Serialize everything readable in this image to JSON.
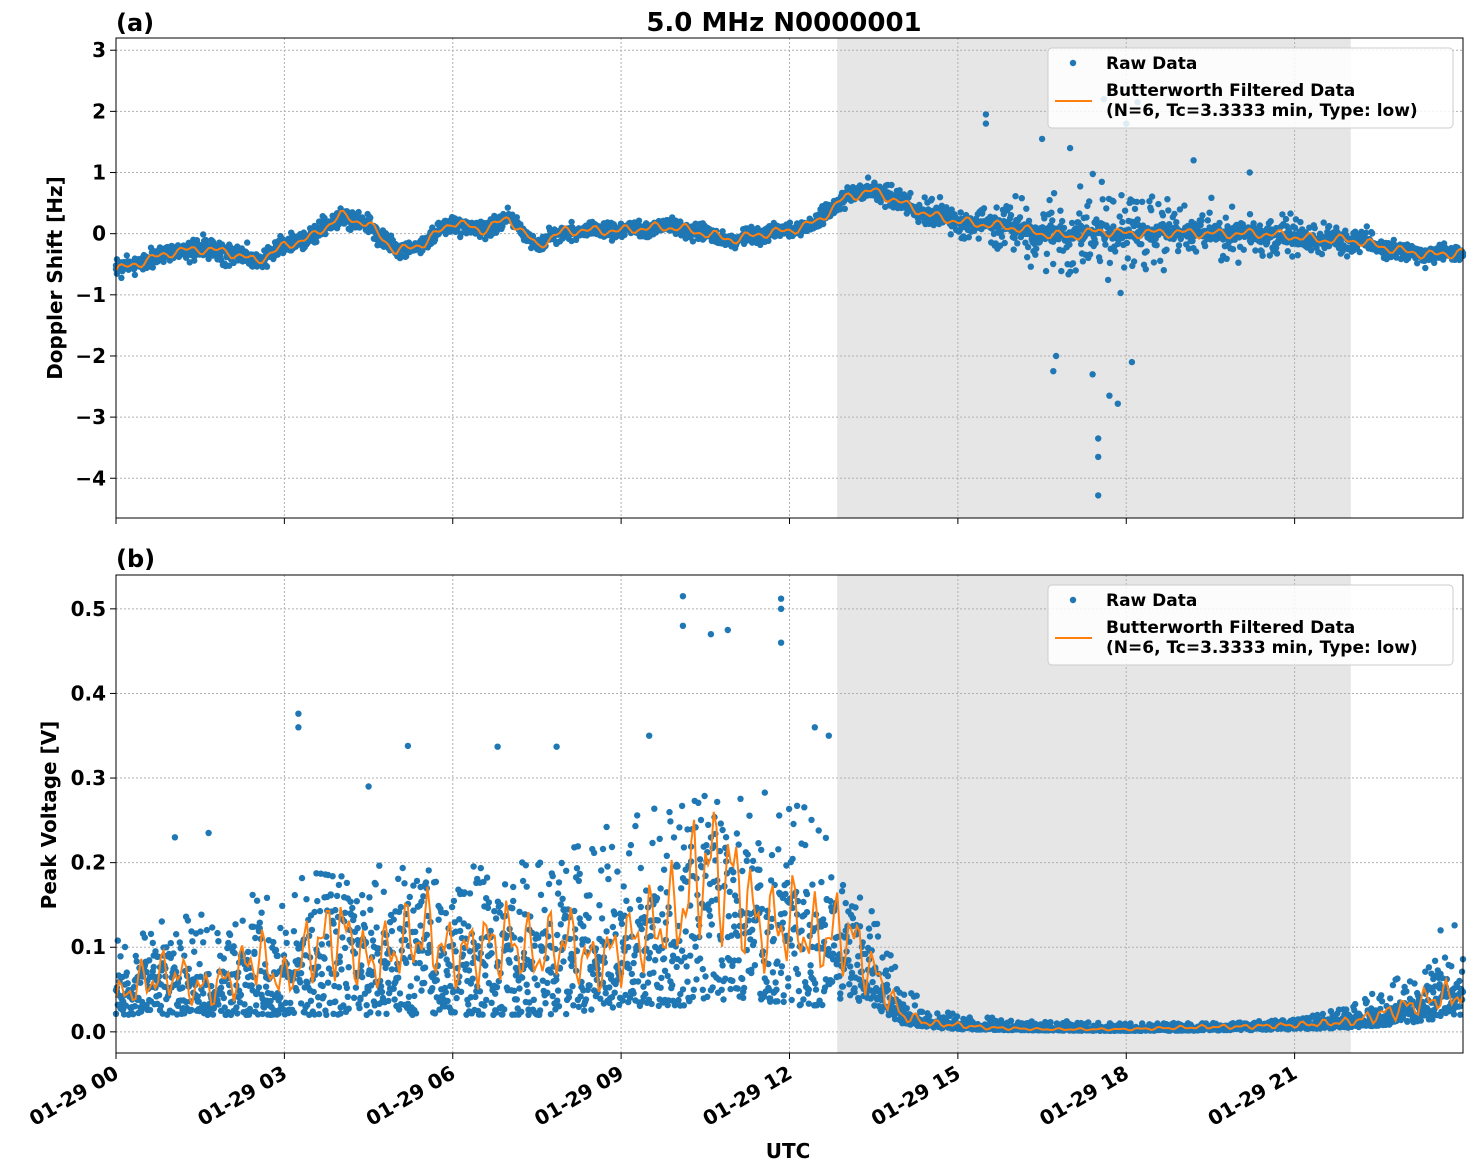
{
  "figure": {
    "title": "5.0 MHz N0000001",
    "xlabel": "UTC",
    "x_tick_labels": [
      "01-29 00",
      "01-29 03",
      "01-29 06",
      "01-29 09",
      "01-29 12",
      "01-29 15",
      "01-29 18",
      "01-29 21"
    ],
    "shaded_region_hours": [
      12.85,
      22.0
    ],
    "colors": {
      "raw": "#1f77b4",
      "filtered": "#ff7f0e",
      "shade": "#e6e6e6"
    }
  },
  "legend": {
    "raw_label": "Raw Data",
    "filtered_label_line1": "Butterworth Filtered Data",
    "filtered_label_line2": "(N=6, Tc=3.3333 min, Type: low)"
  },
  "chart_data": [
    {
      "type": "scatter",
      "panel_label": "(a)",
      "ylabel": "Doppler Shift [Hz]",
      "xlim_hours": [
        0,
        24
      ],
      "ylim": [
        -4.65,
        3.2
      ],
      "yticks": [
        3,
        2,
        1,
        0,
        -1,
        -2,
        -3,
        -4
      ],
      "ytick_labels": [
        "3",
        "2",
        "1",
        "0",
        "−1",
        "−2",
        "−3",
        "−4"
      ],
      "filtered_series": {
        "name": "Butterworth Filtered Data",
        "x_hours": [
          0,
          0.5,
          1,
          1.5,
          2,
          2.5,
          3,
          3.5,
          4,
          4.5,
          5,
          5.5,
          6,
          6.5,
          7,
          7.5,
          8,
          8.5,
          9,
          9.5,
          10,
          10.5,
          11,
          11.5,
          12,
          12.5,
          13,
          13.5,
          14,
          14.5,
          15,
          15.5,
          16,
          16.5,
          17,
          17.5,
          18,
          18.5,
          19,
          19.5,
          20,
          20.5,
          21,
          21.5,
          22,
          22.5,
          23,
          23.5,
          24
        ],
        "y": [
          -0.6,
          -0.45,
          -0.3,
          -0.25,
          -0.3,
          -0.45,
          -0.2,
          -0.05,
          0.3,
          0.15,
          -0.3,
          -0.15,
          0.2,
          0.05,
          0.25,
          -0.2,
          0.05,
          0.05,
          0.05,
          0.1,
          0.1,
          0.0,
          -0.1,
          0.0,
          0.05,
          0.2,
          0.6,
          0.7,
          0.5,
          0.3,
          0.2,
          0.15,
          0.1,
          0.0,
          -0.05,
          0.05,
          0.0,
          0.02,
          0.02,
          0.0,
          0.0,
          0.0,
          -0.05,
          -0.1,
          -0.1,
          -0.2,
          -0.3,
          -0.35,
          -0.3
        ]
      },
      "raw_series": {
        "name": "Raw Data",
        "spread_envelope": {
          "x_hours": [
            0,
            2,
            4,
            6,
            8,
            10,
            12,
            12.85,
            13.5,
            14,
            15,
            16,
            16.5,
            17,
            17.5,
            18,
            18.5,
            19,
            20,
            21,
            22,
            23,
            24
          ],
          "half_width": [
            0.35,
            0.3,
            0.25,
            0.25,
            0.2,
            0.2,
            0.2,
            0.3,
            0.35,
            0.35,
            0.5,
            0.8,
            1.1,
            1.4,
            1.5,
            1.3,
            1.0,
            0.8,
            0.7,
            0.5,
            0.35,
            0.25,
            0.25
          ]
        },
        "outlier_points": [
          {
            "x_hours": 17.5,
            "y": -4.28
          },
          {
            "x_hours": 17.5,
            "y": -3.65
          },
          {
            "x_hours": 17.5,
            "y": -3.35
          },
          {
            "x_hours": 17.7,
            "y": -2.65
          },
          {
            "x_hours": 17.4,
            "y": -2.3
          },
          {
            "x_hours": 17.85,
            "y": -2.78
          },
          {
            "x_hours": 16.7,
            "y": -2.25
          },
          {
            "x_hours": 16.75,
            "y": -2.0
          },
          {
            "x_hours": 18.1,
            "y": -2.1
          },
          {
            "x_hours": 17.6,
            "y": 2.2
          },
          {
            "x_hours": 18.2,
            "y": 2.15
          },
          {
            "x_hours": 15.5,
            "y": 1.95
          },
          {
            "x_hours": 15.5,
            "y": 1.8
          },
          {
            "x_hours": 16.5,
            "y": 1.55
          },
          {
            "x_hours": 17.0,
            "y": 1.4
          },
          {
            "x_hours": 18.0,
            "y": 1.8
          },
          {
            "x_hours": 19.2,
            "y": 1.2
          },
          {
            "x_hours": 20.2,
            "y": 1.0
          }
        ]
      }
    },
    {
      "type": "scatter",
      "panel_label": "(b)",
      "ylabel": "Peak Voltage [V]",
      "xlim_hours": [
        0,
        24
      ],
      "ylim": [
        -0.025,
        0.54
      ],
      "yticks": [
        0.0,
        0.1,
        0.2,
        0.3,
        0.4,
        0.5
      ],
      "ytick_labels": [
        "0.0",
        "0.1",
        "0.2",
        "0.3",
        "0.4",
        "0.5"
      ],
      "filtered_series": {
        "name": "Butterworth Filtered Data",
        "x_hours": [
          0,
          0.5,
          1,
          1.5,
          2,
          2.5,
          3,
          3.5,
          4,
          4.5,
          5,
          5.5,
          6,
          6.5,
          7,
          7.5,
          8,
          8.5,
          9,
          9.5,
          10,
          10.5,
          11,
          11.5,
          12,
          12.5,
          13,
          13.5,
          14,
          14.5,
          15,
          15.5,
          16,
          16.5,
          17,
          17.5,
          18,
          18.5,
          19,
          19.5,
          20,
          20.5,
          21,
          21.5,
          22,
          22.5,
          23,
          23.5,
          24
        ],
        "y": [
          0.04,
          0.06,
          0.07,
          0.05,
          0.06,
          0.09,
          0.06,
          0.1,
          0.12,
          0.08,
          0.1,
          0.12,
          0.09,
          0.1,
          0.11,
          0.09,
          0.11,
          0.08,
          0.1,
          0.12,
          0.14,
          0.2,
          0.18,
          0.12,
          0.13,
          0.11,
          0.12,
          0.07,
          0.02,
          0.01,
          0.008,
          0.005,
          0.004,
          0.003,
          0.003,
          0.003,
          0.003,
          0.004,
          0.005,
          0.006,
          0.006,
          0.007,
          0.008,
          0.01,
          0.012,
          0.02,
          0.03,
          0.04,
          0.045
        ]
      },
      "raw_series": {
        "name": "Raw Data",
        "spread_envelope": {
          "x_hours": [
            0,
            1,
            2,
            3,
            4,
            5,
            6,
            7,
            8,
            9,
            10,
            11,
            12,
            12.5,
            13,
            13.5,
            14,
            14.5,
            15,
            16,
            18,
            20,
            21,
            22,
            23,
            24
          ],
          "low": [
            0.02,
            0.02,
            0.02,
            0.02,
            0.02,
            0.02,
            0.02,
            0.02,
            0.02,
            0.03,
            0.03,
            0.04,
            0.03,
            0.03,
            0.04,
            0.03,
            0.01,
            0.005,
            0.003,
            0.002,
            0.001,
            0.002,
            0.003,
            0.005,
            0.01,
            0.02
          ],
          "high": [
            0.11,
            0.14,
            0.15,
            0.18,
            0.2,
            0.2,
            0.2,
            0.2,
            0.22,
            0.25,
            0.3,
            0.3,
            0.27,
            0.27,
            0.17,
            0.15,
            0.06,
            0.03,
            0.02,
            0.015,
            0.01,
            0.012,
            0.015,
            0.03,
            0.07,
            0.1
          ]
        },
        "outlier_points": [
          {
            "x_hours": 10.1,
            "y": 0.515
          },
          {
            "x_hours": 11.85,
            "y": 0.512
          },
          {
            "x_hours": 11.85,
            "y": 0.5
          },
          {
            "x_hours": 10.6,
            "y": 0.47
          },
          {
            "x_hours": 10.9,
            "y": 0.475
          },
          {
            "x_hours": 10.1,
            "y": 0.48
          },
          {
            "x_hours": 11.85,
            "y": 0.46
          },
          {
            "x_hours": 3.25,
            "y": 0.376
          },
          {
            "x_hours": 3.25,
            "y": 0.36
          },
          {
            "x_hours": 12.45,
            "y": 0.36
          },
          {
            "x_hours": 12.7,
            "y": 0.35
          },
          {
            "x_hours": 9.5,
            "y": 0.35
          },
          {
            "x_hours": 5.2,
            "y": 0.338
          },
          {
            "x_hours": 6.8,
            "y": 0.337
          },
          {
            "x_hours": 7.85,
            "y": 0.337
          },
          {
            "x_hours": 4.5,
            "y": 0.29
          },
          {
            "x_hours": 1.05,
            "y": 0.23
          },
          {
            "x_hours": 1.65,
            "y": 0.235
          },
          {
            "x_hours": 23.85,
            "y": 0.126
          },
          {
            "x_hours": 23.6,
            "y": 0.12
          }
        ]
      }
    }
  ]
}
